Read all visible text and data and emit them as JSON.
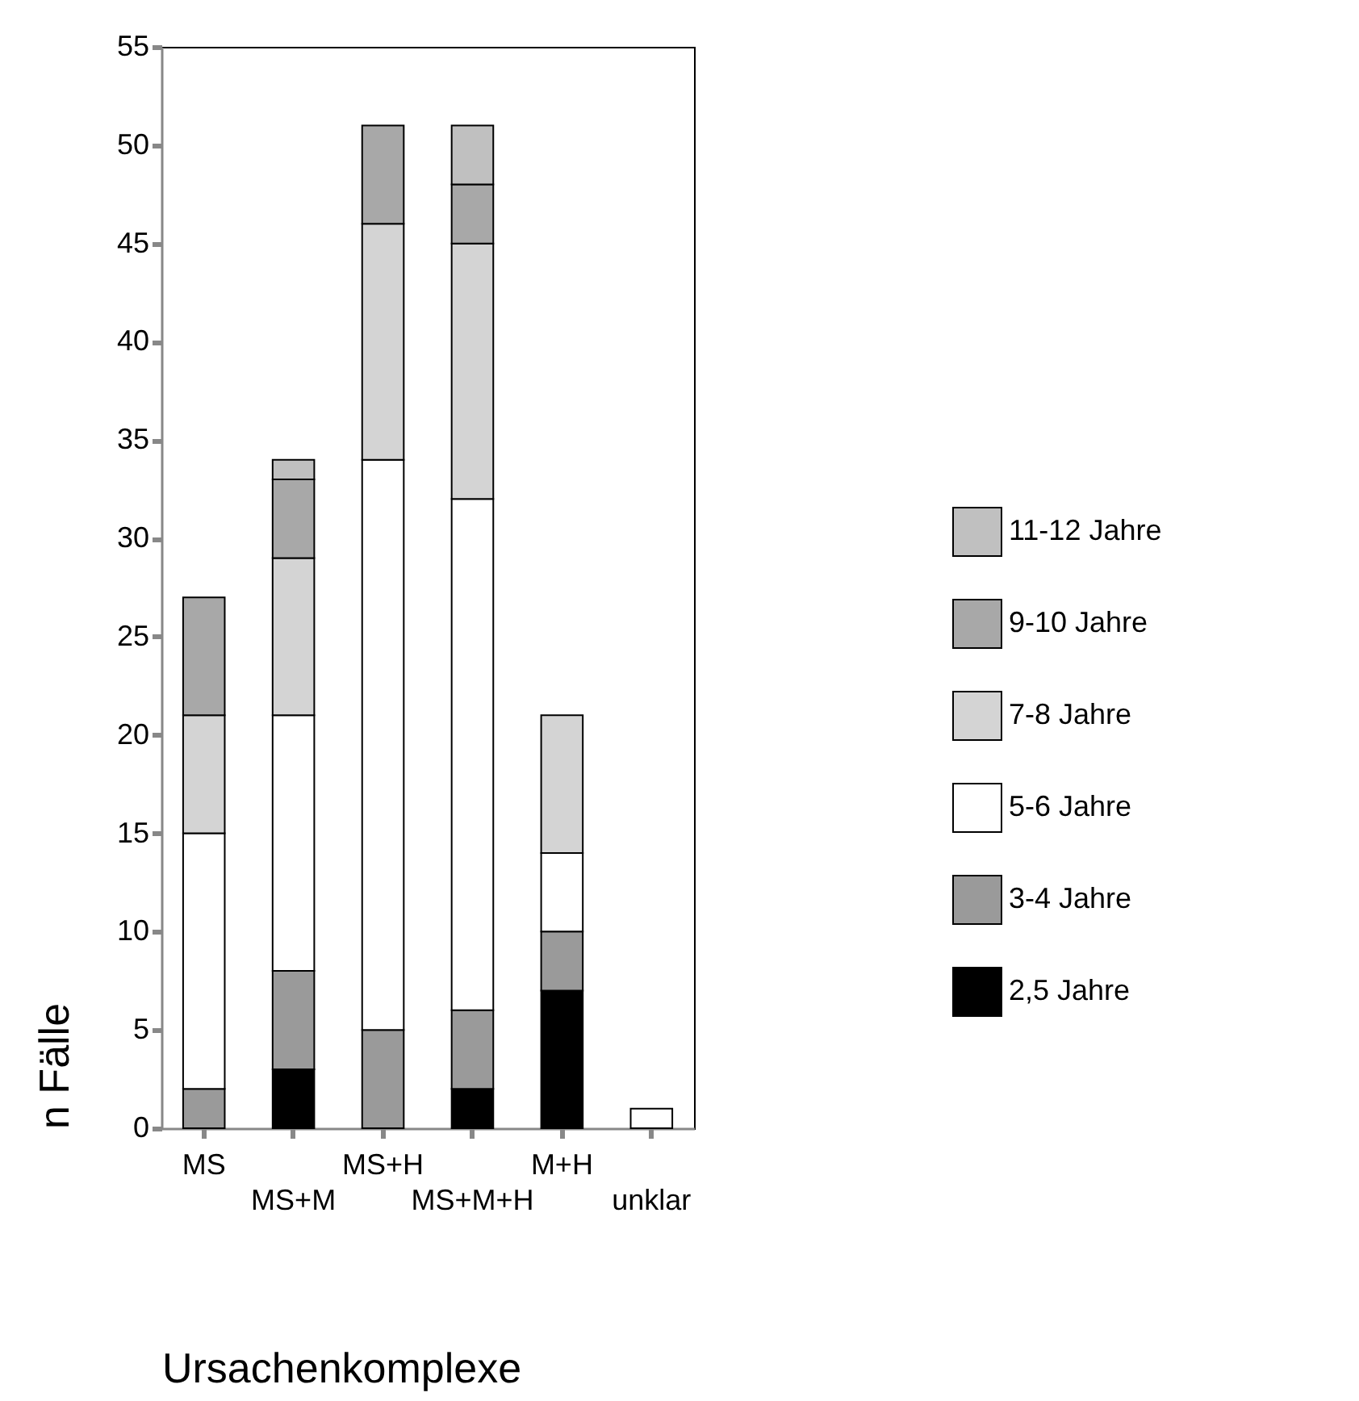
{
  "chart_data": {
    "type": "bar",
    "stacked": true,
    "xlabel": "Ursachenkomplexe",
    "ylabel": "n Fälle",
    "categories": [
      "MS",
      "MS+M",
      "MS+H",
      "MS+M+H",
      "M+H",
      "unklar"
    ],
    "ylim": [
      0,
      55
    ],
    "yticks": [
      0,
      5,
      10,
      15,
      20,
      25,
      30,
      35,
      40,
      45,
      50,
      55
    ],
    "grid": false,
    "legend": "right",
    "series": [
      {
        "name": "2,5 Jahre",
        "color": "#000000",
        "values": [
          0,
          3,
          0,
          2,
          7,
          0
        ]
      },
      {
        "name": "3-4 Jahre",
        "color": "#9a9a9a",
        "values": [
          2,
          5,
          5,
          4,
          3,
          0
        ]
      },
      {
        "name": "5-6 Jahre",
        "color": "#ffffff",
        "values": [
          13,
          13,
          29,
          26,
          4,
          1
        ]
      },
      {
        "name": "7-8 Jahre",
        "color": "#d4d4d4",
        "values": [
          6,
          8,
          12,
          13,
          7,
          0
        ]
      },
      {
        "name": "9-10 Jahre",
        "color": "#a8a8a8",
        "values": [
          6,
          4,
          5,
          3,
          0,
          0
        ]
      },
      {
        "name": "11-12 Jahre",
        "color": "#c0c0c0",
        "values": [
          0,
          1,
          0,
          3,
          0,
          0
        ]
      }
    ]
  }
}
